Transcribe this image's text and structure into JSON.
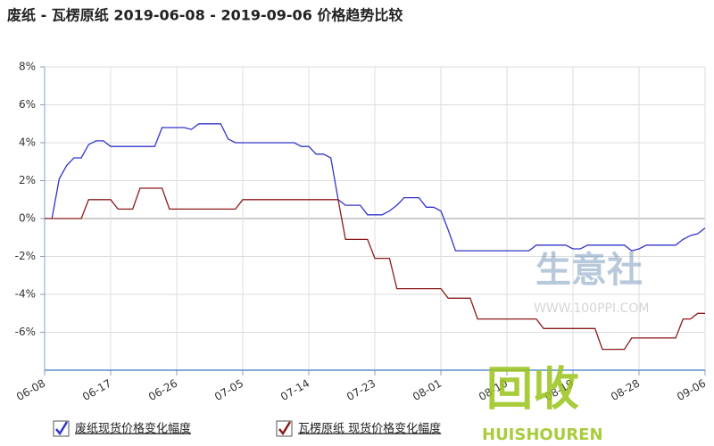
{
  "chart_data": {
    "type": "line",
    "title": "废纸 - 瓦楞原纸 2019-06-08 - 2019-09-06 价格趋势比较",
    "xlim": [
      "06-08",
      "09-06"
    ],
    "xticks": [
      "06-08",
      "06-17",
      "06-26",
      "07-05",
      "07-14",
      "07-23",
      "08-01",
      "08-10",
      "08-19",
      "08-28",
      "09-06"
    ],
    "ylim": [
      -8,
      8
    ],
    "yticks": [
      {
        "value": -6,
        "label": "-6%"
      },
      {
        "value": -4,
        "label": "-4%"
      },
      {
        "value": -2,
        "label": "-2%"
      },
      {
        "value": 0,
        "label": "0%"
      },
      {
        "value": 2,
        "label": "2%"
      },
      {
        "value": 4,
        "label": "4%"
      },
      {
        "value": 6,
        "label": "6%"
      },
      {
        "value": 8,
        "label": "8%"
      }
    ],
    "grid": true,
    "series": [
      {
        "name": "废纸现货价格变化幅度",
        "color": "#3333cc",
        "x": [
          "06-09",
          "06-10",
          "06-11",
          "06-12",
          "06-13",
          "06-14",
          "06-15",
          "06-16",
          "06-17",
          "06-23",
          "06-24",
          "06-27",
          "06-28",
          "06-29",
          "07-02",
          "07-03",
          "07-04",
          "07-12",
          "07-13",
          "07-14",
          "07-15",
          "07-16",
          "07-17",
          "07-18",
          "07-19",
          "07-21",
          "07-22",
          "07-24",
          "07-25",
          "07-26",
          "07-27",
          "07-29",
          "07-30",
          "07-31",
          "08-01",
          "08-02",
          "08-03",
          "08-13",
          "08-14",
          "08-18",
          "08-19",
          "08-20",
          "08-21",
          "08-26",
          "08-27",
          "08-28",
          "08-29",
          "09-02",
          "09-03",
          "09-04",
          "09-05",
          "09-06"
        ],
        "values": [
          0,
          2.1,
          2.8,
          3.2,
          3.2,
          3.9,
          4.1,
          4.1,
          3.8,
          3.8,
          4.8,
          4.8,
          4.7,
          5.0,
          5.0,
          4.2,
          4.0,
          4.0,
          3.8,
          3.8,
          3.4,
          3.4,
          3.2,
          1.0,
          0.7,
          0.7,
          0.2,
          0.2,
          0.4,
          0.7,
          1.1,
          1.1,
          0.6,
          0.6,
          0.4,
          -0.6,
          -1.7,
          -1.7,
          -1.4,
          -1.4,
          -1.6,
          -1.6,
          -1.4,
          -1.4,
          -1.7,
          -1.6,
          -1.4,
          -1.4,
          -1.1,
          -0.9,
          -0.8,
          -0.5
        ]
      },
      {
        "name": "瓦楞原纸 现货价格变化幅度",
        "color": "#8b1a1a",
        "x": [
          "06-08",
          "06-13",
          "06-14",
          "06-17",
          "06-18",
          "06-20",
          "06-21",
          "06-24",
          "06-25",
          "07-04",
          "07-05",
          "07-18",
          "07-19",
          "07-22",
          "07-23",
          "07-25",
          "07-26",
          "08-01",
          "08-02",
          "08-05",
          "08-06",
          "08-14",
          "08-15",
          "08-22",
          "08-23",
          "08-26",
          "08-27",
          "09-02",
          "09-03",
          "09-04",
          "09-05",
          "09-06"
        ],
        "values": [
          0,
          0,
          1.0,
          1.0,
          0.5,
          0.5,
          1.6,
          1.6,
          0.5,
          0.5,
          1.0,
          1.0,
          -1.1,
          -1.1,
          -2.1,
          -2.1,
          -3.7,
          -3.7,
          -4.2,
          -4.2,
          -5.3,
          -5.3,
          -5.8,
          -5.8,
          -6.9,
          -6.9,
          -6.3,
          -6.3,
          -5.3,
          -5.3,
          -5.0,
          -5.0
        ]
      }
    ]
  },
  "watermark": {
    "site": "生意社",
    "url": "WWW.100PPI.COM",
    "logo": "回收",
    "brand": "HUISHOUREN"
  }
}
